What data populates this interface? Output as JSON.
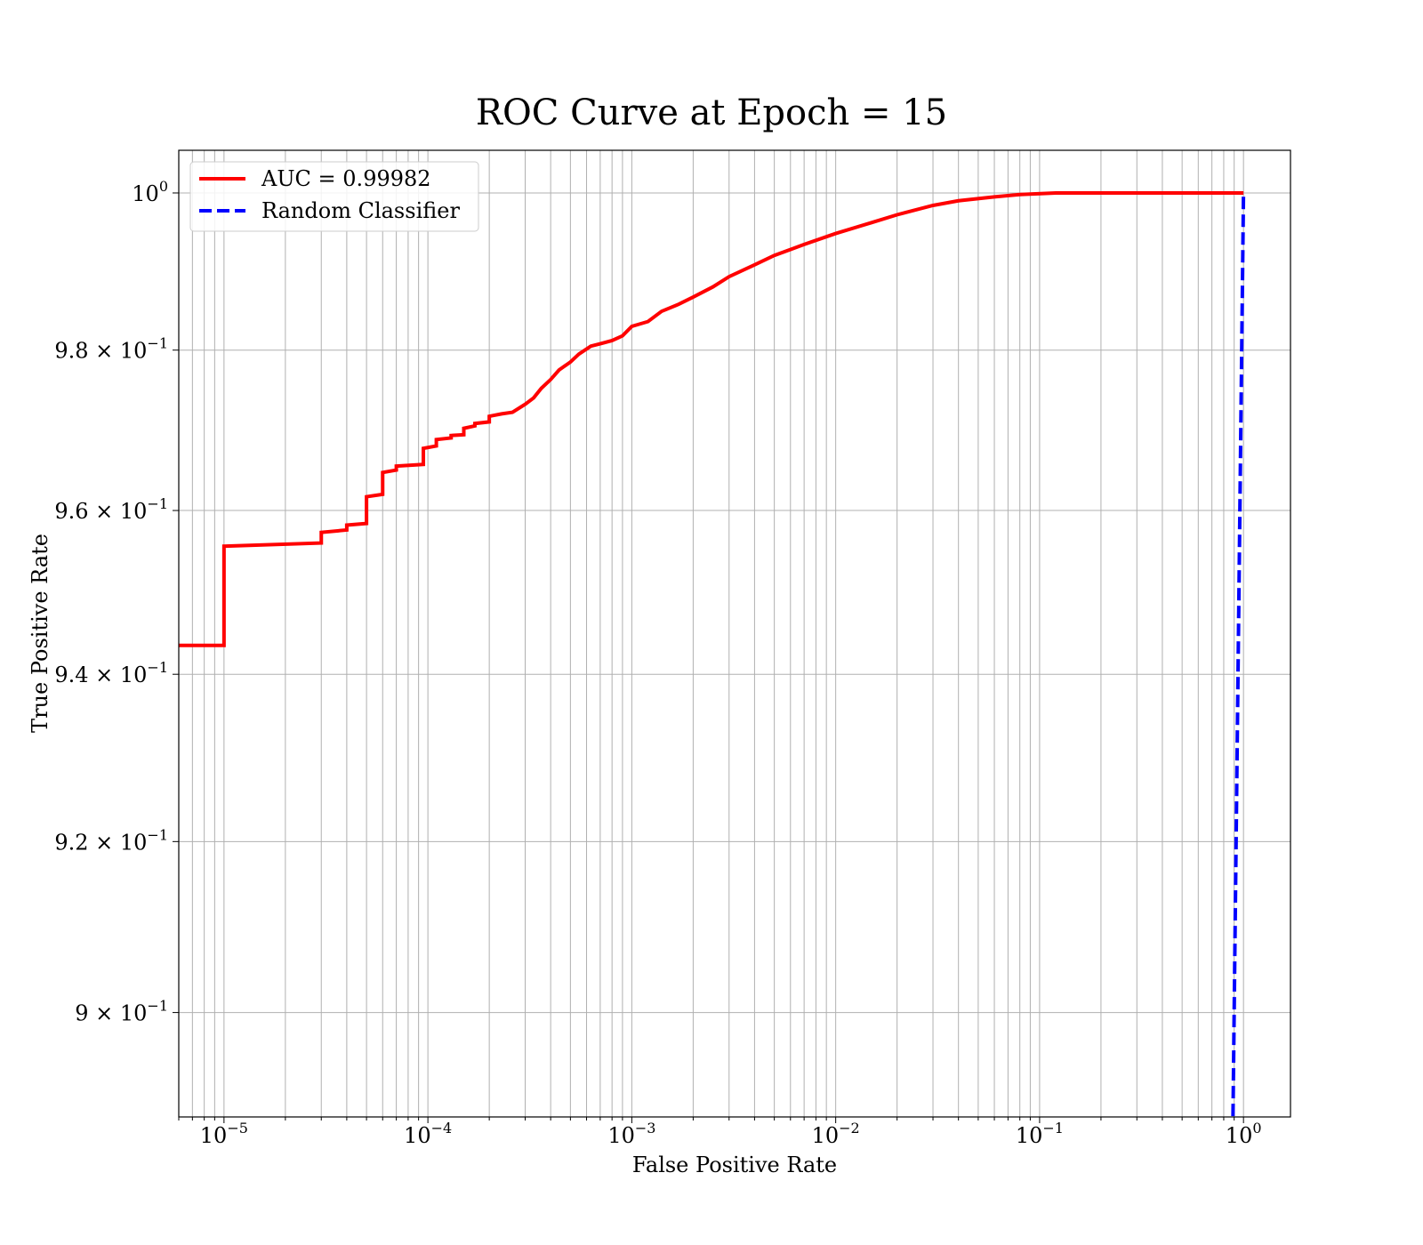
{
  "chart_data": {
    "type": "line",
    "title": "ROC Curve at Epoch = 15",
    "xlabel": "False Positive Rate",
    "ylabel": "True Positive Rate",
    "xscale": "log",
    "yscale": "log",
    "xlim": [
      6e-06,
      1.7
    ],
    "ylim": [
      0.888,
      1.0055
    ],
    "grid": "both-major-and-minor",
    "legend_position": "top-left",
    "x_ticks": [
      {
        "value": 1e-05,
        "base": "10",
        "exp": "−5"
      },
      {
        "value": 0.0001,
        "base": "10",
        "exp": "−4"
      },
      {
        "value": 0.001,
        "base": "10",
        "exp": "−3"
      },
      {
        "value": 0.01,
        "base": "10",
        "exp": "−2"
      },
      {
        "value": 0.1,
        "base": "10",
        "exp": "−1"
      },
      {
        "value": 1,
        "base": "10",
        "exp": "0"
      }
    ],
    "y_ticks": [
      {
        "value": 0.9,
        "mantissa": "9",
        "times": "×",
        "base": "10",
        "exp": "−1"
      },
      {
        "value": 0.92,
        "mantissa": "9.2",
        "times": "×",
        "base": "10",
        "exp": "−1"
      },
      {
        "value": 0.94,
        "mantissa": "9.4",
        "times": "×",
        "base": "10",
        "exp": "−1"
      },
      {
        "value": 0.96,
        "mantissa": "9.6",
        "times": "×",
        "base": "10",
        "exp": "−1"
      },
      {
        "value": 0.98,
        "mantissa": "9.8",
        "times": "×",
        "base": "10",
        "exp": "−1"
      },
      {
        "value": 1.0,
        "mantissa": "",
        "times": "",
        "base": "10",
        "exp": "0"
      }
    ],
    "series": [
      {
        "name": "AUC = 0.99982",
        "color": "#ff0000",
        "line_style": "solid",
        "step": true,
        "points": [
          [
            6e-06,
            0.9435
          ],
          [
            1e-05,
            0.9435
          ],
          [
            1e-05,
            0.9556
          ],
          [
            3e-05,
            0.956
          ],
          [
            3e-05,
            0.9573
          ],
          [
            4e-05,
            0.9576
          ],
          [
            4e-05,
            0.9582
          ],
          [
            5e-05,
            0.9584
          ],
          [
            5e-05,
            0.9617
          ],
          [
            6e-05,
            0.962
          ],
          [
            6e-05,
            0.9647
          ],
          [
            7e-05,
            0.965
          ],
          [
            7e-05,
            0.9655
          ],
          [
            9.5e-05,
            0.9657
          ],
          [
            9.5e-05,
            0.9677
          ],
          [
            0.00011,
            0.968
          ],
          [
            0.00011,
            0.9688
          ],
          [
            0.00013,
            0.969
          ],
          [
            0.00013,
            0.9693
          ],
          [
            0.00015,
            0.9694
          ],
          [
            0.00015,
            0.9702
          ],
          [
            0.00017,
            0.9705
          ],
          [
            0.00017,
            0.9708
          ],
          [
            0.0002,
            0.971
          ],
          [
            0.0002,
            0.9717
          ],
          [
            0.00023,
            0.972
          ],
          [
            0.00026,
            0.9722
          ],
          [
            0.0003,
            0.9732
          ],
          [
            0.00033,
            0.974
          ],
          [
            0.00036,
            0.9752
          ],
          [
            0.0004,
            0.9763
          ],
          [
            0.00044,
            0.9775
          ],
          [
            0.0005,
            0.9785
          ],
          [
            0.00055,
            0.9795
          ],
          [
            0.00063,
            0.9805
          ],
          [
            0.0007,
            0.9808
          ],
          [
            0.0008,
            0.9812
          ],
          [
            0.0009,
            0.9818
          ],
          [
            0.001,
            0.983
          ],
          [
            0.0012,
            0.9836
          ],
          [
            0.0014,
            0.9849
          ],
          [
            0.0017,
            0.9858
          ],
          [
            0.002,
            0.9867
          ],
          [
            0.0025,
            0.988
          ],
          [
            0.003,
            0.9893
          ],
          [
            0.004,
            0.9908
          ],
          [
            0.005,
            0.992
          ],
          [
            0.007,
            0.9934
          ],
          [
            0.01,
            0.9948
          ],
          [
            0.015,
            0.9962
          ],
          [
            0.02,
            0.9972
          ],
          [
            0.03,
            0.9984
          ],
          [
            0.04,
            0.999
          ],
          [
            0.06,
            0.9995
          ],
          [
            0.08,
            0.9998
          ],
          [
            0.12,
            1.0
          ],
          [
            1.0,
            1.0
          ]
        ]
      },
      {
        "name": "Random Classifier",
        "color": "#0000ff",
        "line_style": "dashed",
        "step": false,
        "points": [
          [
            0.87,
            0.87
          ],
          [
            1.0,
            1.0
          ]
        ]
      }
    ]
  }
}
